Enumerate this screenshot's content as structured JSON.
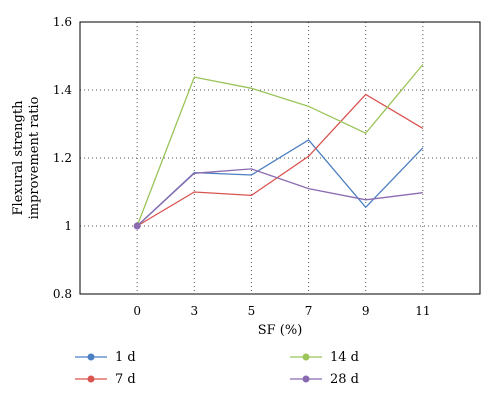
{
  "chart_data": {
    "type": "line",
    "xlabel": "SF (%)",
    "ylabel_lines": [
      "Flexural strength",
      "improvement ratio"
    ],
    "x": [
      0,
      3,
      5,
      7,
      9,
      11
    ],
    "x_tick_labels": [
      "0",
      "3",
      "5",
      "7",
      "9",
      "11"
    ],
    "ylim": [
      0.8,
      1.6
    ],
    "y_ticks": [
      0.8,
      1.0,
      1.2,
      1.4,
      1.6
    ],
    "y_tick_labels": [
      "0.8",
      "1",
      "1.2",
      "1.4",
      "1.6"
    ],
    "grid": true,
    "grid_style": "dotted",
    "legend_position": "bottom",
    "series": [
      {
        "name": "1 d",
        "color": "#4a7fc1",
        "values": [
          1.0,
          1.157,
          1.15,
          1.253,
          1.055,
          1.23
        ]
      },
      {
        "name": "7 d",
        "color": "#d9534f",
        "values": [
          1.0,
          1.1,
          1.09,
          1.205,
          1.387,
          1.287
        ]
      },
      {
        "name": "14 d",
        "color": "#9bc45a",
        "values": [
          1.0,
          1.438,
          1.405,
          1.352,
          1.273,
          1.475
        ]
      },
      {
        "name": "28 d",
        "color": "#8a6bb0",
        "values": [
          1.0,
          1.155,
          1.168,
          1.11,
          1.077,
          1.098
        ]
      }
    ]
  }
}
